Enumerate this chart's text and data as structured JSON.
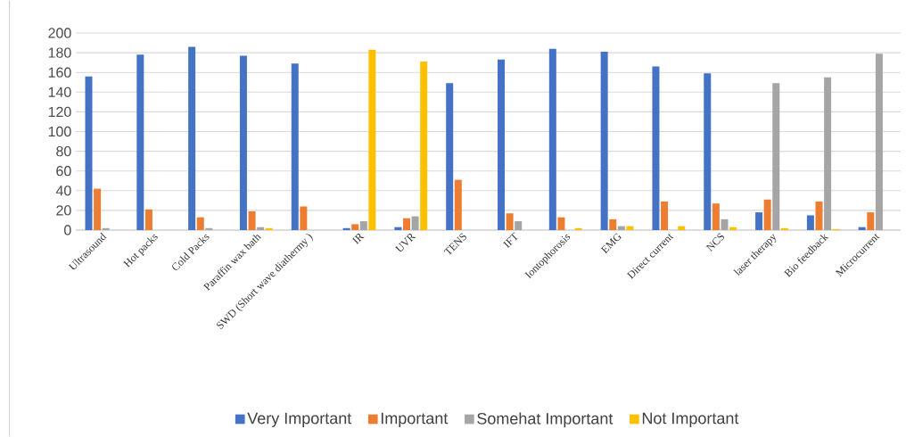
{
  "chart_data": {
    "type": "bar",
    "categories": [
      "Ultrasound",
      "Hot packs",
      "Cold Packs",
      "Paraffin wax bath",
      "SWD (Short wave diathermy )",
      "IR",
      "UVR",
      "TENS",
      "IFT",
      "Iontophorosis",
      "EMG",
      "Direct current",
      "NCS",
      "laser therapy",
      "Bio feedback",
      "Microcurrent"
    ],
    "series": [
      {
        "name": "Very Important",
        "color": "#4472c4",
        "values": [
          156,
          178,
          186,
          177,
          169,
          2,
          3,
          149,
          173,
          184,
          181,
          166,
          159,
          18,
          15,
          3
        ]
      },
      {
        "name": "Important",
        "color": "#ed7d31",
        "values": [
          42,
          21,
          13,
          19,
          24,
          6,
          12,
          51,
          17,
          13,
          11,
          29,
          27,
          31,
          29,
          18
        ]
      },
      {
        "name": "Somehat Important",
        "color": "#a5a5a5",
        "values": [
          2,
          null,
          2,
          3,
          0,
          9,
          14,
          0,
          9,
          null,
          4,
          null,
          11,
          149,
          155,
          179
        ]
      },
      {
        "name": "Not Important",
        "color": "#ffc000",
        "values": [
          0,
          0,
          0,
          2,
          0,
          183,
          171,
          0,
          0,
          2,
          4,
          4,
          3,
          2,
          1,
          0
        ]
      }
    ],
    "ylim": [
      0,
      200
    ],
    "yticks": [
      0,
      20,
      40,
      60,
      80,
      100,
      120,
      140,
      160,
      180,
      200
    ],
    "grid": "y",
    "legend": "bottom"
  }
}
